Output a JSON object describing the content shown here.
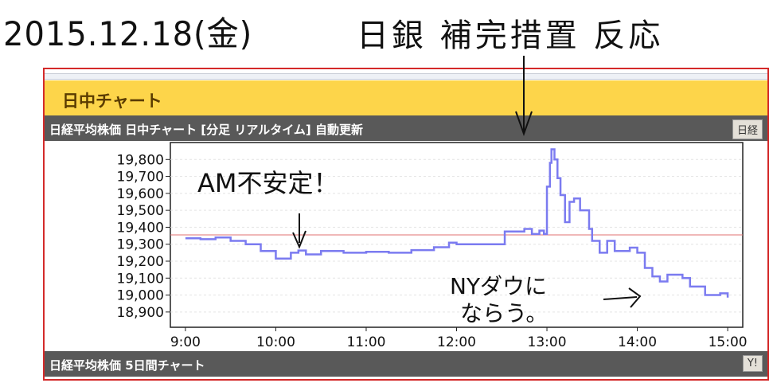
{
  "annotations": {
    "date": "2015.12.18(金)",
    "headline": "日銀 補完措置 反応",
    "am_note": "AM不安定！",
    "pm_note_line1": "NYダウに",
    "pm_note_line2": "ならう。"
  },
  "panel": {
    "section_title": "日中チャート",
    "chart_bar_title": "日経平均株価 日中チャート [分足 リアルタイム] 自動更新",
    "chart_bar_button": "日経",
    "footer_bar_title": "日経平均株価 5日間チャート",
    "footer_bar_button": "Y!"
  },
  "colors": {
    "header_yellow": "#fdd54a",
    "bar_gray": "#595959",
    "line": "#7b7bf0",
    "reference_line": "#e07070",
    "frame": "#d42a2a"
  },
  "chart_data": {
    "type": "line",
    "title": "",
    "xlabel": "",
    "ylabel": "",
    "x_ticks": [
      "9:00",
      "10:00",
      "11:00",
      "12:00",
      "13:00",
      "14:00",
      "15:00"
    ],
    "y_ticks": [
      "18,900",
      "19,000",
      "19,100",
      "19,200",
      "19,300",
      "19,400",
      "19,500",
      "19,600",
      "19,700",
      "19,800"
    ],
    "ylim": [
      18810,
      19900
    ],
    "xlim": [
      "8:50",
      "15:10"
    ],
    "grid": true,
    "reference_line": 19355,
    "series": [
      {
        "x": [
          "9:00",
          "9:10",
          "9:20",
          "9:30",
          "9:40",
          "9:50",
          "10:00",
          "10:10",
          "10:15",
          "10:20",
          "10:30",
          "10:45",
          "11:00",
          "11:15",
          "11:30",
          "11:45",
          "11:55",
          "12:00",
          "12:30",
          "12:32",
          "12:45",
          "12:50",
          "12:55",
          "12:58",
          "13:00",
          "13:02",
          "13:03",
          "13:05",
          "13:07",
          "13:09",
          "13:12",
          "13:15",
          "13:18",
          "13:22",
          "13:28",
          "13:30",
          "13:35",
          "13:40",
          "13:45",
          "13:55",
          "14:00",
          "14:05",
          "14:10",
          "14:15",
          "14:20",
          "14:30",
          "14:35",
          "14:45",
          "14:55",
          "15:00"
        ],
        "y": [
          19335,
          19330,
          19340,
          19320,
          19300,
          19260,
          19215,
          19250,
          19263,
          19240,
          19260,
          19250,
          19255,
          19250,
          19265,
          19282,
          19309,
          19300,
          19300,
          19375,
          19390,
          19360,
          19380,
          19360,
          19640,
          19780,
          19860,
          19800,
          19690,
          19590,
          19430,
          19550,
          19570,
          19500,
          19390,
          19320,
          19250,
          19320,
          19260,
          19280,
          19250,
          19160,
          19110,
          19080,
          19120,
          19100,
          19050,
          19000,
          19010,
          18985
        ]
      }
    ]
  }
}
